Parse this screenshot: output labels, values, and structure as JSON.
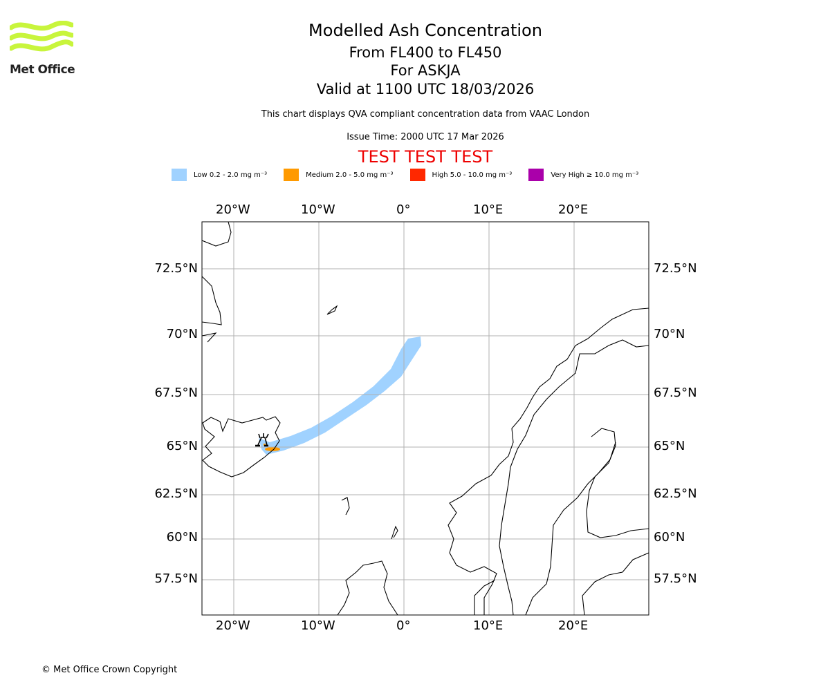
{
  "logo": {
    "text": "Met Office"
  },
  "header": {
    "title": "Modelled Ash Concentration",
    "levels": "From FL400 to FL450",
    "volcano": "For ASKJA",
    "valid": "Valid at 1100 UTC 18/03/2026",
    "qva_note": "This chart displays QVA compliant concentration data from VAAC London",
    "issue_time": "Issue Time: 2000 UTC 17 Mar 2026",
    "test_banner": "TEST TEST TEST"
  },
  "legend": [
    {
      "label": "Low 0.2 - 2.0 mg m⁻³",
      "color": "#a0d2ff"
    },
    {
      "label": "Medium 2.0 - 5.0 mg m⁻³",
      "color": "#ff9a00"
    },
    {
      "label": "High 5.0 - 10.0 mg m⁻³",
      "color": "#ff2800"
    },
    {
      "label": "Very High ≥ 10.0 mg m⁻³",
      "color": "#aa00aa"
    }
  ],
  "map": {
    "lon_ticks": [
      "20°W",
      "10°W",
      "0°",
      "10°E",
      "20°E"
    ],
    "lat_ticks": [
      "72.5°N",
      "70°N",
      "67.5°N",
      "65°N",
      "62.5°N",
      "60°N",
      "57.5°N"
    ],
    "volcano_icon": "volcano-icon"
  },
  "footer": {
    "copyright": "© Met Office Crown Copyright"
  }
}
